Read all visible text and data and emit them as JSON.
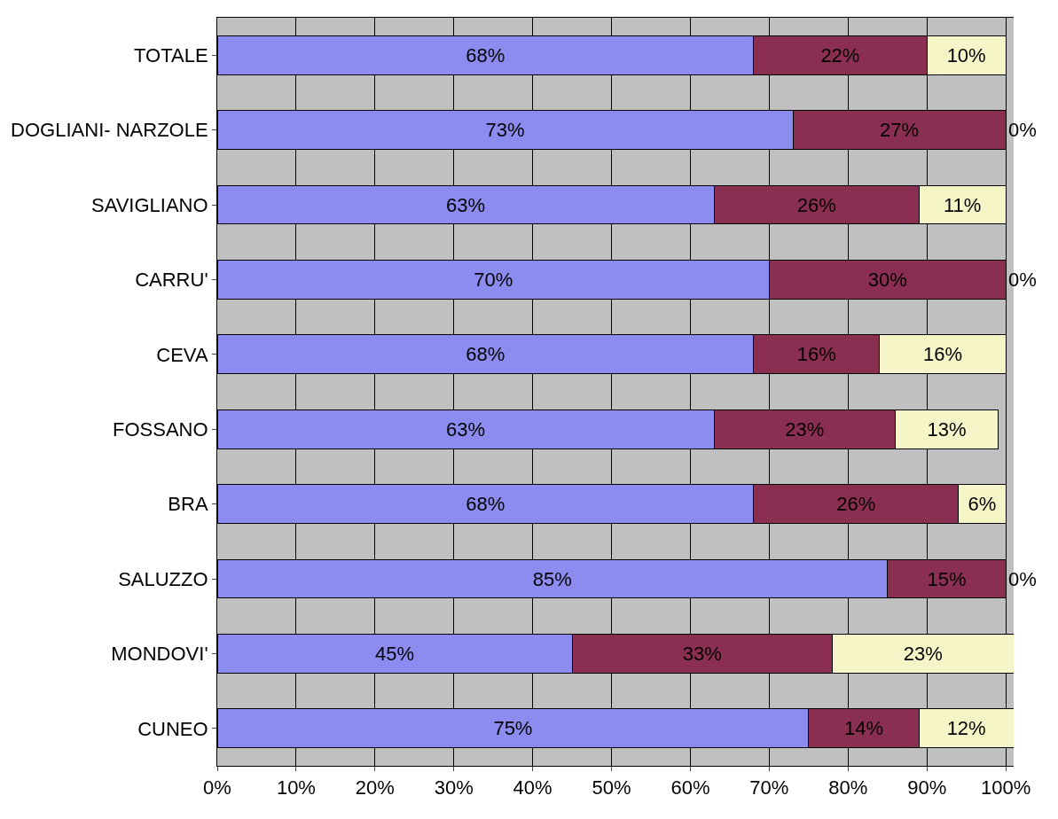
{
  "chart_data": {
    "type": "bar",
    "orientation": "horizontal",
    "stacked": true,
    "grid": "x",
    "categories": [
      "TOTALE",
      "DOGLIANI- NARZOLE",
      "SAVIGLIANO",
      "CARRU'",
      "CEVA",
      "FOSSANO",
      "BRA",
      "SALUZZO",
      "MONDOVI'",
      "CUNEO"
    ],
    "series": [
      {
        "color": "#8c8cf0",
        "values": [
          68,
          73,
          63,
          70,
          68,
          63,
          68,
          85,
          45,
          75
        ],
        "value_labels": [
          "68%",
          "73%",
          "63%",
          "70%",
          "68%",
          "63%",
          "68%",
          "85%",
          "45%",
          "75%"
        ]
      },
      {
        "color": "#8b2f52",
        "values": [
          22,
          27,
          26,
          30,
          16,
          23,
          26,
          15,
          33,
          14
        ],
        "value_labels": [
          "22%",
          "27%",
          "26%",
          "30%",
          "16%",
          "23%",
          "26%",
          "15%",
          "33%",
          "14%"
        ]
      },
      {
        "color": "#f5f5c8",
        "values": [
          10,
          0,
          11,
          0,
          16,
          13,
          6,
          0,
          23,
          12
        ],
        "value_labels": [
          "10%",
          "0%",
          "11%",
          "0%",
          "16%",
          "13%",
          "6%",
          "0%",
          "23%",
          "12%"
        ]
      }
    ],
    "xlim": [
      0,
      101
    ],
    "xticks": [
      {
        "value": 0,
        "label": "0%"
      },
      {
        "value": 10,
        "label": "10%"
      },
      {
        "value": 20,
        "label": "20%"
      },
      {
        "value": 30,
        "label": "30%"
      },
      {
        "value": 40,
        "label": "40%"
      },
      {
        "value": 50,
        "label": "50%"
      },
      {
        "value": 60,
        "label": "60%"
      },
      {
        "value": 70,
        "label": "70%"
      },
      {
        "value": 80,
        "label": "80%"
      },
      {
        "value": 90,
        "label": "90%"
      },
      {
        "value": 100,
        "label": "100%"
      }
    ]
  }
}
